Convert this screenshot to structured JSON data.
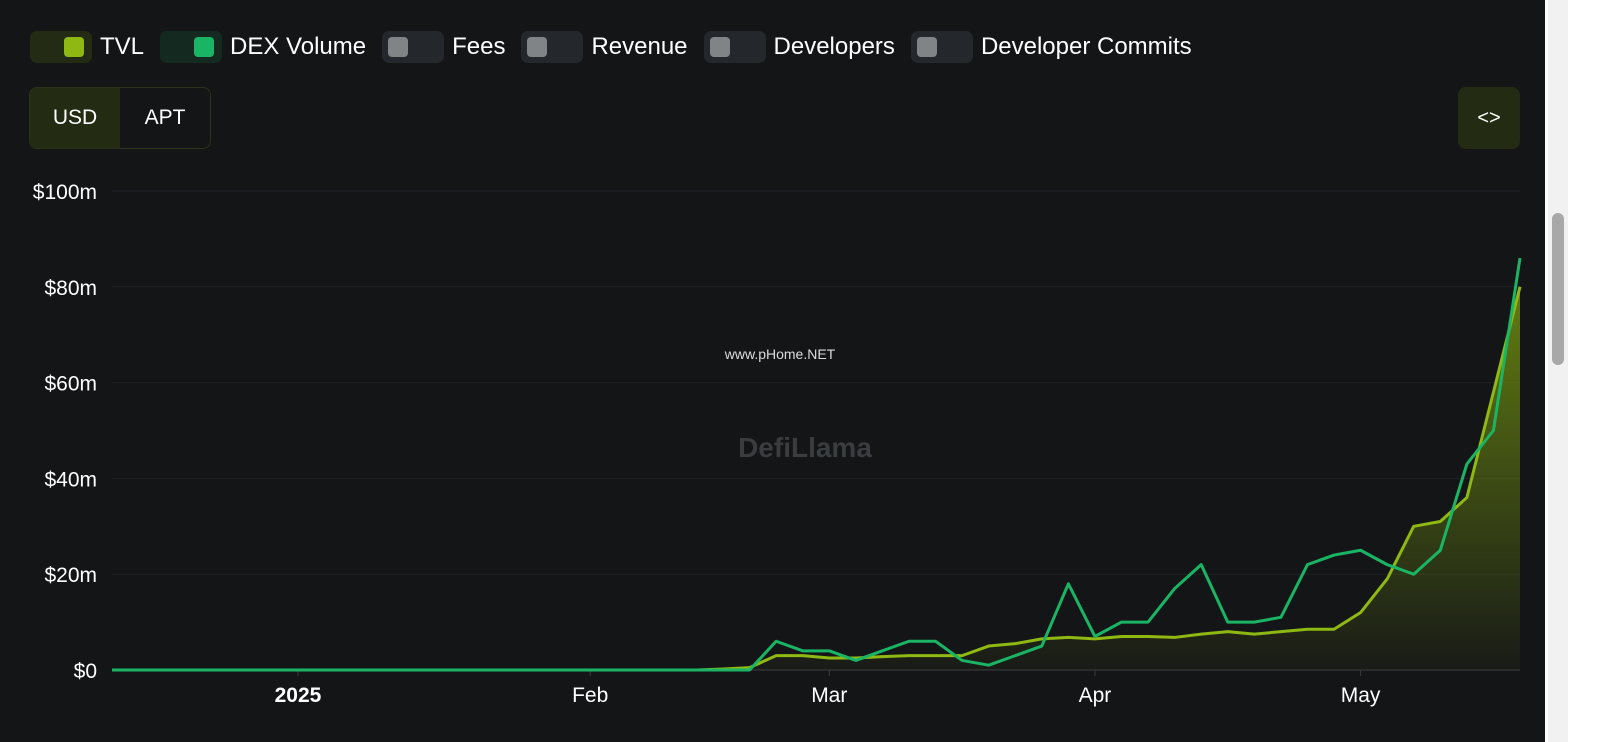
{
  "ui": {
    "toggles": [
      {
        "name": "Fees"
      },
      {
        "name": "Revenue"
      },
      {
        "name": "Developers"
      },
      {
        "name": "Developer Commits"
      }
    ],
    "buttons": [
      "USD",
      "APT"
    ],
    "embed_button": "<>",
    "watermark": "DefiLlama",
    "watermark_url": "www.pHome.NET"
  },
  "chart_data": {
    "type": "line",
    "categories": [
      null,
      null,
      null,
      null,
      null,
      null,
      null,
      "2025",
      null,
      null,
      null,
      null,
      null,
      null,
      null,
      null,
      null,
      null,
      "Feb",
      null,
      null,
      null,
      null,
      null,
      null,
      null,
      null,
      "Mar",
      null,
      null,
      null,
      null,
      null,
      null,
      null,
      null,
      null,
      "Apr",
      null,
      null,
      null,
      null,
      null,
      null,
      null,
      null,
      null,
      "May",
      null,
      null,
      null,
      null,
      null,
      null
    ],
    "series": [
      {
        "name": "TVL",
        "color": "#8fb812",
        "area": true,
        "values": [
          0,
          0,
          0,
          0,
          0,
          0,
          0,
          0,
          0,
          0,
          0,
          0,
          0,
          0,
          0,
          0,
          0,
          0,
          0,
          0,
          0,
          0,
          0,
          0.2,
          0.5,
          3,
          3,
          2.5,
          2.5,
          2.8,
          3,
          3,
          3,
          5,
          5.5,
          6.5,
          6.8,
          6.5,
          7,
          7,
          6.8,
          7.5,
          8,
          7.5,
          8,
          8.5,
          8.5,
          12,
          19,
          30,
          31,
          36,
          58,
          80
        ]
      },
      {
        "name": "DEX Volume",
        "color": "#19b565",
        "values": [
          0,
          0,
          0,
          0,
          0,
          0,
          0,
          0,
          0,
          0,
          0,
          0,
          0,
          0,
          0,
          0,
          0,
          0,
          0,
          0,
          0,
          0,
          0,
          0,
          0,
          6,
          4,
          4,
          2,
          4,
          6,
          6,
          2,
          1,
          3,
          5,
          18,
          7,
          10,
          10,
          17,
          22,
          10,
          10,
          11,
          22,
          24,
          25,
          22,
          20,
          25,
          43,
          50,
          86
        ]
      }
    ],
    "ylim": [
      0,
      100
    ],
    "yticks": [
      {
        "value": 0,
        "label": "$0"
      },
      {
        "value": 20,
        "label": "$20m"
      },
      {
        "value": 40,
        "label": "$40m"
      },
      {
        "value": 60,
        "label": "$60m"
      },
      {
        "value": 80,
        "label": "$80m"
      },
      {
        "value": 100,
        "label": "$100m"
      }
    ],
    "grid": true
  }
}
